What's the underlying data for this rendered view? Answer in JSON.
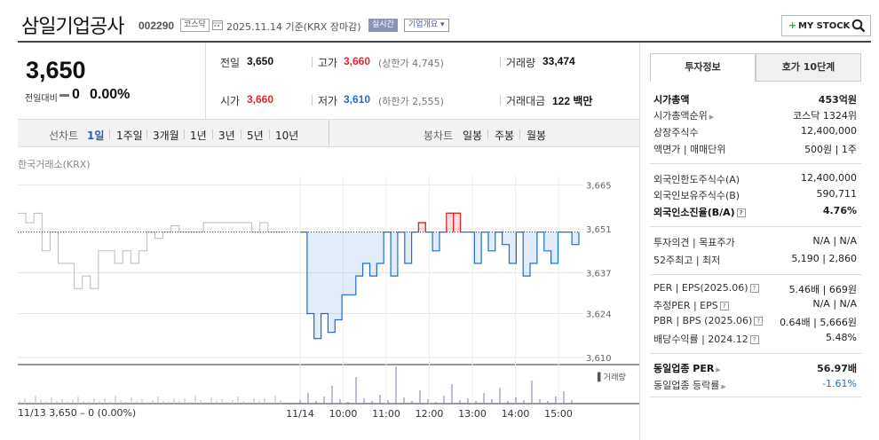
{
  "header": {
    "company_name": "삼일기업공사",
    "stock_code": "002290",
    "market_badge": "코스닥",
    "date_text": "2025.11.14  기준(KRX  장마감)",
    "realtime_badge": "실시간",
    "company_info_badge": "기업개요 ▾",
    "my_stock_plus": "+",
    "my_stock_label": "MY STOCK"
  },
  "price": {
    "current": "3,650",
    "change_label": "전일대비",
    "change_value": "0",
    "change_rate": "0.00%"
  },
  "summary": {
    "prev_close_label": "전일",
    "prev_close": "3,650",
    "high_label": "고가",
    "high": "3,660",
    "upper_limit": "(상한가 4,745)",
    "volume_label": "거래량",
    "volume": "33,474",
    "open_label": "시가",
    "open": "3,660",
    "low_label": "저가",
    "low": "3,610",
    "lower_limit": "(하한가 2,555)",
    "value_label": "거래대금",
    "value": "122 백만"
  },
  "period_bar": {
    "line_chart_label": "선차트",
    "line_periods": [
      "1일",
      "1주일",
      "3개월",
      "1년",
      "3년",
      "5년",
      "10년"
    ],
    "selected": "1일",
    "candle_chart_label": "봉차트",
    "candle_periods": [
      "일봉",
      "주봉",
      "월봉"
    ]
  },
  "chart": {
    "exchange_label": "한국거래소(KRX)",
    "volume_legend": "▌거래량",
    "footer_prev": "11/13  3,650 – 0 (0.00%)",
    "colors": {
      "up": "#e4262c",
      "down": "#1a6fd0",
      "prev_line": "#bbbbbb",
      "volume": "#8a6fb0"
    }
  },
  "chart_data": {
    "type": "line",
    "y_ticks": [
      "3,665",
      "3,651",
      "3,637",
      "3,624",
      "3,610"
    ],
    "ylim": [
      3608,
      3668
    ],
    "baseline": 3650,
    "x_ticks": [
      "11/14",
      "10:00",
      "11:00",
      "12:00",
      "13:00",
      "14:00",
      "15:00"
    ],
    "prev_day_series": [
      3656,
      3653,
      3656,
      3644,
      3650,
      3640,
      3640,
      3632,
      3636,
      3632,
      3644,
      3644,
      3640,
      3644,
      3640,
      3644,
      3650,
      3648,
      3650,
      3652,
      3650,
      3650,
      3650,
      3653,
      3653,
      3653,
      3653,
      3653,
      3653,
      3650,
      3653,
      3650,
      3650,
      3650
    ],
    "today_series": [
      3650,
      3624,
      3616,
      3624,
      3618,
      3622,
      3630,
      3630,
      3636,
      3640,
      3636,
      3640,
      3650,
      3636,
      3650,
      3640,
      3650,
      3653,
      3650,
      3644,
      3650,
      3656,
      3656,
      3650,
      3650,
      3640,
      3650,
      3644,
      3650,
      3646,
      3640,
      3650,
      3636,
      3640,
      3650,
      3644,
      3640,
      3650,
      3650,
      3646,
      3650
    ]
  },
  "invest_info": {
    "tabs": [
      "투자정보",
      "호가 10단계"
    ],
    "market_cap_label": "시가총액",
    "market_cap": "453억원",
    "market_cap_rank_label": "시가총액순위",
    "market_cap_rank": "코스닥 1324위",
    "shares_label": "상장주식수",
    "shares": "12,400,000",
    "par_label": "액면가 | 매매단위",
    "par": "500원 | 1주",
    "foreign_limit_label": "외국인한도주식수(A)",
    "foreign_limit": "12,400,000",
    "foreign_hold_label": "외국인보유주식수(B)",
    "foreign_hold": "590,711",
    "foreign_ratio_label": "외국인소진율(B/A)",
    "foreign_ratio": "4.76%",
    "opinion_label": "투자의견 | 목표주가",
    "opinion": "N/A | N/A",
    "week52_label": "52주최고 | 최저",
    "week52": "5,190 | 2,860",
    "per_label": "PER | EPS(2025.06)",
    "per": "5.46배 | 669원",
    "est_per_label": "추정PER | EPS",
    "est_per": "N/A | N/A",
    "pbr_label": "PBR | BPS (2025.06)",
    "pbr": "0.64배 | 5,666원",
    "dividend_label": "배당수익률 | 2024.12",
    "dividend": "5.48%",
    "industry_per_label": "동일업종 PER",
    "industry_per": "56.97배",
    "industry_change_label": "동일업종 등락률",
    "industry_change": "-1.61%"
  }
}
